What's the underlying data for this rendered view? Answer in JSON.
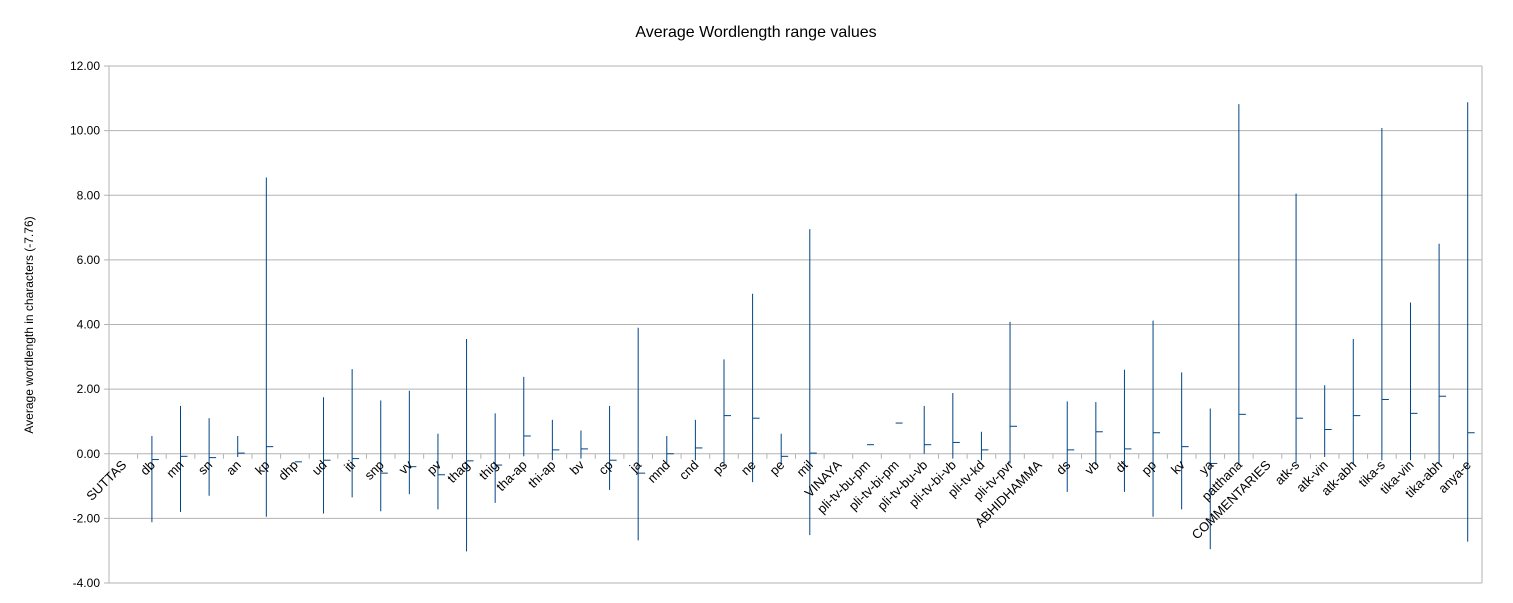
{
  "chart_data": {
    "type": "stock-high-low-close",
    "title": "Average Wordlength range values",
    "ylabel": "Average wordlength in characters (-7.76)",
    "xlabel": "",
    "ylim": [
      -4,
      12
    ],
    "yticks": [
      "-4.00",
      "-2.00",
      "0.00",
      "2.00",
      "4.00",
      "6.00",
      "8.00",
      "10.00",
      "12.00"
    ],
    "grid": "horizontal",
    "categories": [
      "SUTTAS",
      "db",
      "mn",
      "sn",
      "an",
      "kp",
      "dhp",
      "ud",
      "iti",
      "snp",
      "vv",
      "pv",
      "thag",
      "thig",
      "tha-ap",
      "thi-ap",
      "bv",
      "cp",
      "ja",
      "mnd",
      "cnd",
      "ps",
      "ne",
      "pe",
      "mil",
      "VINAYA",
      "pli-tv-bu-pm",
      "pli-tv-bi-pm",
      "pli-tv-bu-vb",
      "pli-tv-bi-vb",
      "pli-tv-kd",
      "pli-tv-pvr",
      "ABHIDHAMMA",
      "ds",
      "vb",
      "dt",
      "pp",
      "kv",
      "ya",
      "patthana",
      "COMMENTARIES",
      "atk-s",
      "atk-vin",
      "atk-abh",
      "tika-s",
      "tika-vin",
      "tika-abh",
      "anya-e"
    ],
    "high": [
      null,
      0.55,
      1.48,
      1.1,
      0.55,
      8.55,
      null,
      1.75,
      2.62,
      1.65,
      1.95,
      0.62,
      3.55,
      1.25,
      2.38,
      1.05,
      0.72,
      1.48,
      3.9,
      0.55,
      1.05,
      2.92,
      4.95,
      0.62,
      6.95,
      null,
      null,
      null,
      1.48,
      1.88,
      0.68,
      4.08,
      null,
      1.62,
      1.6,
      2.6,
      4.12,
      2.52,
      1.4,
      10.82,
      null,
      8.05,
      2.12,
      3.55,
      10.08,
      4.68,
      6.5,
      10.88
    ],
    "low": [
      null,
      -2.12,
      -1.8,
      -1.3,
      -0.1,
      -1.95,
      null,
      -1.85,
      -1.35,
      -1.78,
      -1.25,
      -1.72,
      -3.02,
      -1.52,
      -0.08,
      -0.2,
      -0.15,
      -1.12,
      -2.68,
      -0.3,
      -0.2,
      -0.4,
      -0.88,
      -0.3,
      -2.52,
      null,
      null,
      null,
      0.0,
      -0.15,
      -0.2,
      -0.3,
      null,
      -1.18,
      -0.35,
      -1.18,
      -1.95,
      -1.72,
      -2.95,
      -0.3,
      null,
      -0.3,
      -0.1,
      -0.3,
      -0.2,
      -0.2,
      -0.3,
      -2.72
    ],
    "close": [
      null,
      -0.18,
      -0.08,
      -0.12,
      0.02,
      0.22,
      -0.25,
      -0.2,
      -0.15,
      -0.6,
      -0.4,
      -0.65,
      -0.22,
      -0.35,
      0.55,
      0.12,
      0.15,
      -0.2,
      -0.6,
      0.0,
      0.18,
      1.18,
      1.1,
      -0.08,
      0.02,
      null,
      0.28,
      0.95,
      0.28,
      0.35,
      0.12,
      0.85,
      null,
      0.12,
      0.68,
      0.15,
      0.65,
      0.22,
      -0.3,
      1.22,
      null,
      1.1,
      0.75,
      1.18,
      1.68,
      1.25,
      1.78,
      0.65
    ],
    "series_color": "#004586",
    "grid_color": "#b3b3b3"
  }
}
